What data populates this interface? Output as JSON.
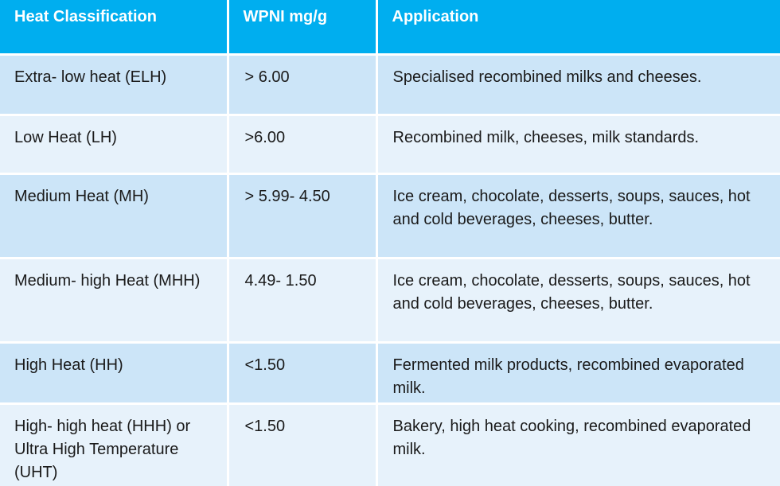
{
  "table": {
    "headers": {
      "classification": "Heat Classification",
      "wpni": "WPNI mg/g",
      "application": "Application"
    },
    "rows": [
      {
        "classification": "Extra- low heat (ELH)",
        "wpni": "> 6.00",
        "application": "Specialised recombined milks and cheeses."
      },
      {
        "classification": "Low Heat (LH)",
        "wpni": ">6.00",
        "application": "Recombined milk, cheeses, milk standards."
      },
      {
        "classification": "Medium Heat (MH)",
        "wpni": "> 5.99- 4.50",
        "application": "Ice cream, chocolate, desserts, soups, sauces, hot and cold beverages, cheeses, butter."
      },
      {
        "classification": "Medium- high Heat (MHH)",
        "wpni": "4.49- 1.50",
        "application": "Ice cream, chocolate, desserts, soups, sauces, hot and cold beverages, cheeses, butter."
      },
      {
        "classification": "High Heat (HH)",
        "wpni": "<1.50",
        "application": "Fermented milk products, recombined evaporated milk."
      },
      {
        "classification": "High- high heat (HHH) or Ultra High Temperature (UHT)",
        "wpni": "<1.50",
        "application": "Bakery, high heat cooking, recombined evaporated milk."
      }
    ]
  },
  "colors": {
    "header_bg": "#00aeef",
    "row_dark": "#cce5f8",
    "row_light": "#e7f2fb"
  }
}
